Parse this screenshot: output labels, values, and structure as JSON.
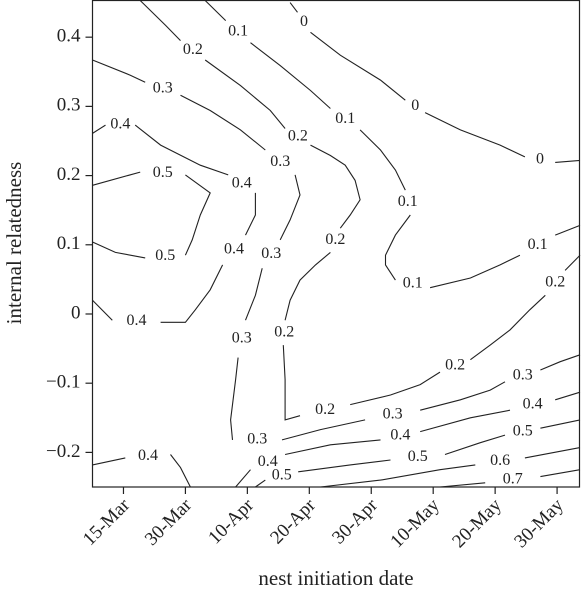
{
  "chart_data": {
    "type": "contour",
    "xlabel": "nest initiation date",
    "ylabel": "internal relatedness",
    "xlim": [
      -5,
      73.7
    ],
    "ylim": [
      -0.25,
      0.453
    ],
    "xticks": [
      {
        "value": 0,
        "label": "15-Mar"
      },
      {
        "value": 10,
        "label": "30-Mar"
      },
      {
        "value": 20,
        "label": "10-Apr"
      },
      {
        "value": 30,
        "label": "20-Apr"
      },
      {
        "value": 40,
        "label": "30-Apr"
      },
      {
        "value": 50,
        "label": "10-May"
      },
      {
        "value": 60,
        "label": "20-May"
      },
      {
        "value": 70,
        "label": "30-May"
      }
    ],
    "yticks": [
      {
        "value": -0.2,
        "label": "−0.2"
      },
      {
        "value": -0.1,
        "label": "−0.1"
      },
      0,
      0.1,
      0.2,
      0.3,
      0.4
    ],
    "color": "#222222",
    "contours": [
      {
        "level": 0,
        "x": [
          26.9,
          28.1,
          null,
          30.2,
          35.0,
          41.5,
          45.5,
          null,
          48.7,
          54.4,
          60.8,
          64.8,
          null,
          69.7,
          73.7
        ],
        "y": [
          0.45,
          0.436,
          null,
          0.407,
          0.374,
          0.338,
          0.309,
          null,
          0.291,
          0.266,
          0.244,
          0.227,
          null,
          0.219,
          0.222
        ]
      },
      {
        "level": 0.1,
        "x": [
          13.2,
          16.5,
          null,
          20.5,
          25.3,
          30.2,
          33.4,
          null,
          38.2,
          41.5,
          43.9,
          45.5,
          null,
          46.3,
          43.9,
          42.3,
          42.3,
          43.9,
          null,
          49.5,
          56.0,
          60.8,
          64.0,
          null,
          69.7,
          73.7
        ],
        "y": [
          0.453,
          0.424,
          null,
          0.392,
          0.359,
          0.323,
          0.297,
          null,
          0.266,
          0.237,
          0.208,
          0.179,
          null,
          0.143,
          0.114,
          0.085,
          0.071,
          0.049,
          null,
          0.038,
          0.052,
          0.071,
          0.085,
          null,
          0.114,
          0.128
        ]
      },
      {
        "level": 0.2,
        "x": [
          2.7,
          6.8,
          9.2,
          null,
          13.2,
          18.9,
          23.7,
          26.1,
          null,
          30.2,
          33.4,
          35.8,
          37.4,
          38.2,
          36.6,
          35.0,
          null,
          33.4,
          31.0,
          28.5,
          26.9,
          26.1,
          null,
          25.8,
          26.1,
          26.1,
          28.5,
          null,
          36.6,
          43.1,
          47.9,
          51.1,
          null,
          56.0,
          59.2,
          62.4,
          65.6,
          68.1,
          null,
          71.3,
          73.7
        ],
        "y": [
          0.453,
          0.417,
          0.395,
          null,
          0.367,
          0.33,
          0.294,
          0.268,
          null,
          0.244,
          0.229,
          0.215,
          0.193,
          0.165,
          0.143,
          0.124,
          null,
          0.089,
          0.071,
          0.049,
          0.02,
          -0.009,
          null,
          -0.045,
          -0.095,
          -0.153,
          -0.147,
          null,
          -0.131,
          -0.117,
          -0.102,
          -0.084,
          null,
          -0.066,
          -0.045,
          -0.023,
          0.006,
          0.027,
          null,
          0.063,
          0.085
        ]
      },
      {
        "level": 0.3,
        "x": [
          -5.0,
          1.1,
          3.5,
          null,
          9.2,
          14.0,
          18.9,
          22.9,
          null,
          27.7,
          28.5,
          26.9,
          25.3,
          null,
          22.4,
          21.3,
          19.7,
          null,
          18.5,
          18.1,
          17.3,
          17.6,
          null,
          25.6,
          31.8,
          39.0,
          null,
          47.9,
          54.4,
          59.2,
          61.6,
          null,
          67.3,
          70.5,
          73.7
        ],
        "y": [
          0.367,
          0.345,
          0.335,
          null,
          0.316,
          0.294,
          0.266,
          0.237,
          null,
          0.201,
          0.172,
          0.136,
          0.107,
          null,
          0.066,
          0.027,
          -0.009,
          null,
          -0.063,
          -0.095,
          -0.153,
          -0.182,
          null,
          -0.182,
          -0.167,
          -0.153,
          null,
          -0.139,
          -0.124,
          -0.11,
          -0.098,
          null,
          -0.081,
          -0.069,
          -0.059
        ]
      },
      {
        "level": 0.4,
        "x": [
          -5.0,
          -2.9,
          null,
          1.9,
          6.0,
          12.4,
          16.9,
          null,
          21.3,
          21.3,
          19.7,
          null,
          16.0,
          14.0,
          11.6,
          10.0,
          6.0,
          null,
          -1.8,
          -5.0
        ],
        "y": [
          0.261,
          0.273,
          null,
          0.273,
          0.244,
          0.215,
          0.201,
          null,
          0.175,
          0.143,
          0.114,
          null,
          0.071,
          0.035,
          0.006,
          -0.012,
          -0.012,
          null,
          -0.009,
          0.02
        ]
      },
      {
        "level": 0.4,
        "x": [
          -5.0,
          0.3,
          null,
          7.6,
          9.2,
          10.8
        ],
        "y": [
          -0.218,
          -0.208,
          null,
          -0.203,
          -0.222,
          -0.25
        ]
      },
      {
        "level": 0.4,
        "x": [
          18.1,
          20.5,
          null,
          26.1,
          33.4,
          41.5,
          null,
          47.9,
          56.0,
          62.4,
          null,
          69.7,
          73.7
        ],
        "y": [
          -0.25,
          -0.225,
          null,
          -0.203,
          -0.189,
          -0.182,
          null,
          -0.17,
          -0.15,
          -0.139,
          null,
          -0.124,
          -0.113
        ]
      },
      {
        "level": 0.5,
        "x": [
          -5.0,
          2.7,
          null,
          10.0,
          14.0,
          12.4,
          11.1,
          10.0,
          null,
          3.5,
          -1.3,
          -5.0
        ],
        "y": [
          0.186,
          0.205,
          null,
          0.201,
          0.175,
          0.143,
          0.107,
          0.085,
          null,
          0.081,
          0.089,
          0.104
        ]
      },
      {
        "level": 0.5,
        "x": [
          21.3,
          22.9,
          null,
          28.2,
          36.6,
          43.1,
          null,
          51.9,
          57.6,
          61.6,
          null,
          67.3,
          73.7
        ],
        "y": [
          -0.25,
          -0.24,
          null,
          -0.228,
          -0.218,
          -0.211,
          null,
          -0.203,
          -0.186,
          -0.175,
          null,
          -0.165,
          -0.153
        ]
      },
      {
        "level": 0.6,
        "x": [
          31.8,
          41.5,
          51.1,
          56.8,
          null,
          64.8,
          73.7
        ],
        "y": [
          -0.25,
          -0.24,
          -0.225,
          -0.218,
          null,
          -0.208,
          -0.193
        ]
      },
      {
        "level": 0.7,
        "x": [
          51.1,
          58.4,
          null,
          67.3,
          73.7
        ],
        "y": [
          -0.25,
          -0.244,
          null,
          -0.235,
          -0.225
        ]
      }
    ]
  }
}
